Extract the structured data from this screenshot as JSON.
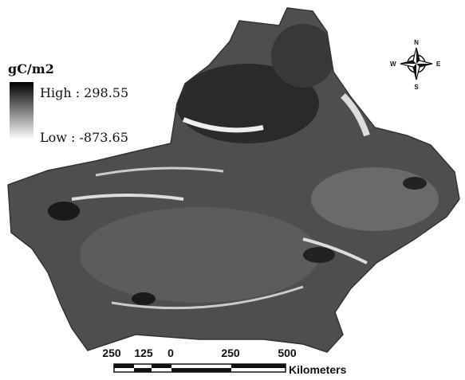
{
  "legend": {
    "title": "gC/m2",
    "high": "High : 298.55",
    "low": "Low : -873.65"
  },
  "compass": {
    "north": "N",
    "south": "S",
    "east": "E",
    "west": "W"
  },
  "scale_bar": {
    "labels": [
      "250",
      "125",
      "0",
      "250",
      "500"
    ],
    "unit": "Kilometers"
  }
}
